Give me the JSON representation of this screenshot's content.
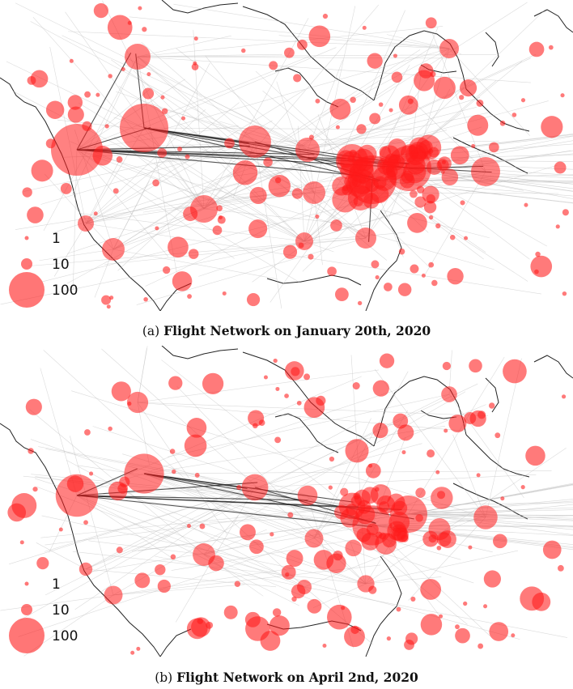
{
  "figure": {
    "panel_a": {
      "label": "(a)",
      "title": "Flight Network on January 20th, 2020"
    },
    "panel_b": {
      "label": "(b)",
      "title": "Flight Network on April 2nd, 2020"
    },
    "legend": {
      "entries": [
        {
          "label": "1",
          "value": 1
        },
        {
          "label": "10",
          "value": 10
        },
        {
          "label": "100",
          "value": 100
        }
      ]
    },
    "colors": {
      "node": "#ff1a1a",
      "edge_strong": "#1a1a1a",
      "edge_weak": "#bdbdbd",
      "coast": "#222222"
    },
    "node_encoding": "circle area proportional to number of flights"
  }
}
